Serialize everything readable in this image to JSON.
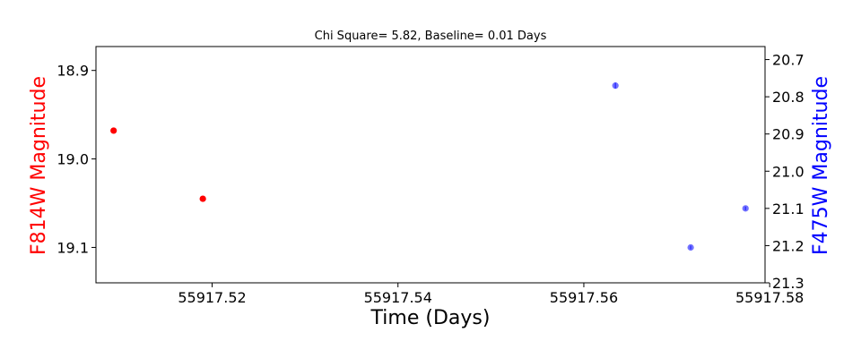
{
  "chart_data": {
    "type": "scatter",
    "title": "Chi Square= 5.82, Baseline= 0.01 Days",
    "xlabel": "Time (Days)",
    "ylabel_left": "F814W Magnitude",
    "ylabel_right": "F475W Magnitude",
    "xlim": [
      55917.5075,
      55917.5795
    ],
    "x_ticks": [
      55917.52,
      55917.54,
      55917.56,
      55917.58
    ],
    "x_tick_labels": [
      "55917.52",
      "55917.54",
      "55917.56",
      "55917.58"
    ],
    "ylim_left": [
      19.14,
      18.873
    ],
    "y_ticks_left": [
      18.9,
      19.0,
      19.1
    ],
    "y_tick_labels_left": [
      "18.9",
      "19.0",
      "19.1"
    ],
    "ylim_right": [
      21.3,
      20.665
    ],
    "y_ticks_right": [
      20.7,
      20.8,
      20.9,
      21.0,
      21.1,
      21.2,
      21.3
    ],
    "y_tick_labels_right": [
      "20.7",
      "20.8",
      "20.9",
      "21.0",
      "21.1",
      "21.2",
      "21.3"
    ],
    "inverted_y": true,
    "grid": false,
    "series": [
      {
        "axis": "left",
        "color": "#ff0000",
        "opacity": 1.0,
        "points": [
          {
            "x": 55917.5094,
            "y": 18.968,
            "err": 0.002
          },
          {
            "x": 55917.519,
            "y": 19.045,
            "err": 0.003
          }
        ]
      },
      {
        "axis": "right",
        "color": "#0000ff",
        "opacity": 0.55,
        "points": [
          {
            "x": 55917.5634,
            "y": 20.77,
            "err": 0.008
          },
          {
            "x": 55917.5715,
            "y": 21.205,
            "err": 0.005
          },
          {
            "x": 55917.5774,
            "y": 21.1,
            "err": 0.005
          }
        ]
      }
    ]
  }
}
